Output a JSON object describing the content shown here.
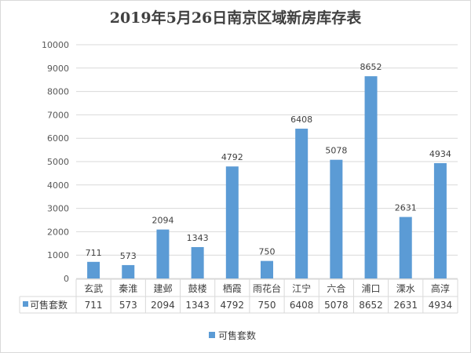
{
  "chart_data": {
    "type": "bar",
    "title": "2019年5月26日南京区域新房库存表",
    "categories": [
      "玄武",
      "秦淮",
      "建邺",
      "鼓楼",
      "栖霞",
      "雨花台",
      "江宁",
      "六合",
      "浦口",
      "溧水",
      "高淳"
    ],
    "series": [
      {
        "name": "可售套数",
        "values": [
          711,
          573,
          2094,
          1343,
          4792,
          750,
          6408,
          5078,
          8652,
          2631,
          4934
        ],
        "color": "#5b9bd5"
      }
    ],
    "yticks": [
      "0",
      "1000",
      "2000",
      "3000",
      "4000",
      "5000",
      "6000",
      "7000",
      "8000",
      "9000",
      "10000"
    ],
    "ylim": [
      0,
      10000
    ],
    "grid": true,
    "legend": "bottom",
    "data_table": true
  }
}
